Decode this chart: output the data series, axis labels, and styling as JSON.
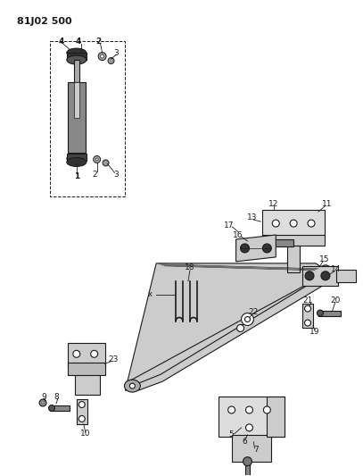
{
  "title": "81J02 500",
  "bg_color": "#ffffff",
  "line_color": "#1a1a1a",
  "figsize": [
    4.07,
    5.33
  ],
  "dpi": 100
}
